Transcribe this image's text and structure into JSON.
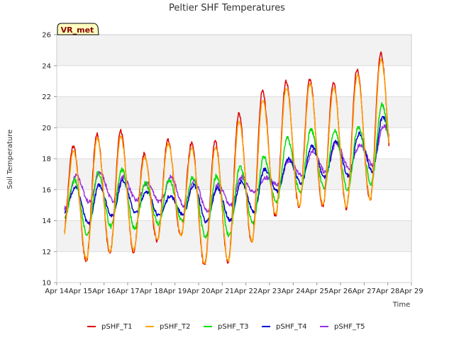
{
  "chart_data": {
    "type": "line",
    "title": "Peltier SHF Temperatures",
    "xlabel": "Time",
    "ylabel": "Soil Temperature",
    "badge": "VR_met",
    "ylim": [
      10,
      26
    ],
    "yticks": [
      10,
      12,
      14,
      16,
      18,
      20,
      22,
      24,
      26
    ],
    "xlim": [
      "2024-04-14",
      "2024-04-29"
    ],
    "xticks": [
      "Apr 14",
      "Apr 15",
      "Apr 16",
      "Apr 17",
      "Apr 18",
      "Apr 19",
      "Apr 20",
      "Apr 21",
      "Apr 22",
      "Apr 23",
      "Apr 24",
      "Apr 25",
      "Apr 26",
      "Apr 27",
      "Apr 28",
      "Apr 29"
    ],
    "grid": true,
    "legend_position": "bottom",
    "x": [
      "Apr 14",
      "Apr 15",
      "Apr 16",
      "Apr 17",
      "Apr 18",
      "Apr 19",
      "Apr 20",
      "Apr 21",
      "Apr 22",
      "Apr 23",
      "Apr 24",
      "Apr 25",
      "Apr 26",
      "Apr 27",
      "Apr 28"
    ],
    "series": [
      {
        "name": "pSHF_T1",
        "color": "#dd0000",
        "mins": [
          12.9,
          11.4,
          11.9,
          12.0,
          12.7,
          13.0,
          11.1,
          11.3,
          12.6,
          14.3,
          14.9,
          14.9,
          14.8,
          15.3,
          16.4
        ],
        "maxs": [
          18.8,
          19.6,
          19.8,
          18.3,
          19.2,
          19.0,
          19.1,
          20.9,
          22.4,
          23.0,
          23.1,
          22.9,
          23.8,
          24.8,
          19.0
        ]
      },
      {
        "name": "pSHF_T2",
        "color": "#ffa500",
        "mins": [
          12.8,
          11.5,
          12.0,
          12.1,
          12.8,
          13.1,
          11.2,
          11.4,
          12.7,
          14.4,
          15.0,
          15.0,
          14.9,
          15.4,
          16.5
        ],
        "maxs": [
          18.5,
          19.3,
          19.4,
          18.1,
          19.0,
          18.7,
          18.8,
          20.4,
          21.8,
          22.6,
          22.8,
          22.6,
          23.4,
          24.4,
          19.0
        ]
      },
      {
        "name": "pSHF_T3",
        "color": "#00dd00",
        "mins": [
          14.0,
          13.1,
          13.6,
          13.5,
          13.8,
          14.0,
          12.9,
          13.0,
          13.8,
          15.2,
          15.8,
          16.1,
          16.0,
          16.4,
          17.0
        ],
        "maxs": [
          16.6,
          17.1,
          17.3,
          16.4,
          16.6,
          16.8,
          16.9,
          17.5,
          18.1,
          19.3,
          19.9,
          19.8,
          20.1,
          21.5,
          19.0
        ]
      },
      {
        "name": "pSHF_T4",
        "color": "#0000cc",
        "mins": [
          14.6,
          13.8,
          14.3,
          14.5,
          14.3,
          14.4,
          13.9,
          14.0,
          14.6,
          15.9,
          16.4,
          16.8,
          16.9,
          17.2,
          17.6
        ],
        "maxs": [
          16.2,
          16.3,
          16.6,
          15.9,
          15.6,
          16.3,
          16.1,
          16.5,
          17.3,
          18.0,
          18.8,
          19.1,
          19.6,
          20.7,
          19.0
        ]
      },
      {
        "name": "pSHF_T5",
        "color": "#9933dd",
        "mins": [
          14.8,
          15.2,
          15.3,
          15.3,
          15.2,
          15.0,
          14.6,
          15.0,
          15.8,
          16.3,
          16.9,
          17.1,
          17.4,
          17.6,
          18.4
        ],
        "maxs": [
          16.9,
          17.1,
          16.8,
          16.4,
          16.8,
          16.5,
          16.3,
          16.8,
          16.8,
          17.9,
          18.5,
          19.0,
          18.9,
          20.1,
          18.4
        ]
      }
    ]
  }
}
